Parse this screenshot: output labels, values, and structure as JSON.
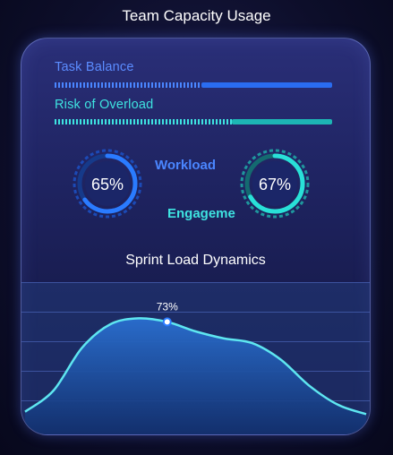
{
  "page": {
    "title": "Team Capacity Usage"
  },
  "bars": [
    {
      "label": "Task Balance",
      "value": 0.53,
      "color": "#4a86ff",
      "track": "#2a6cf0"
    },
    {
      "label": "Risk of Overload",
      "value": 0.64,
      "color": "#3ee3e0",
      "track": "#1db5b4"
    }
  ],
  "gauges": [
    {
      "label": "Workload",
      "value_text": "65%",
      "value": 0.65,
      "color": "#2a7bff"
    },
    {
      "label": "Engageme",
      "value_text": "67%",
      "value": 0.67,
      "color": "#29e0d8"
    }
  ],
  "chart_data": {
    "type": "area",
    "title": "Sprint Load Dynamics",
    "annotation": "73%",
    "x": [
      0,
      1,
      2,
      3,
      4,
      5,
      6,
      7,
      8,
      9,
      10,
      11,
      12
    ],
    "values": [
      4,
      22,
      58,
      78,
      83,
      80,
      72,
      66,
      62,
      48,
      26,
      10,
      2
    ],
    "ylim": [
      0,
      100
    ],
    "highlight_index": 5,
    "line_color": "#5ee6f0",
    "fill_color": "#1f5fb8"
  }
}
